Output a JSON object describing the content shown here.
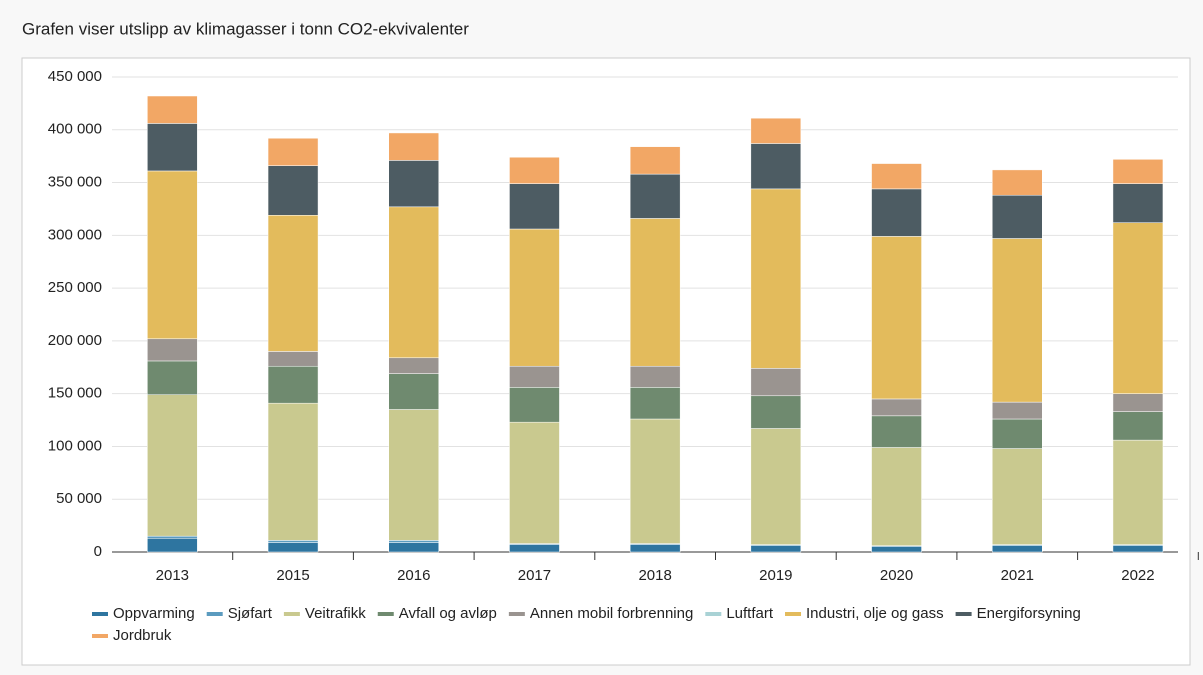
{
  "chart_data": {
    "type": "stacked-bar",
    "title": "Grafen viser utslipp av klimagasser i tonn CO2-ekvivalenter",
    "categories": [
      "2013",
      "2015",
      "2016",
      "2017",
      "2018",
      "2019",
      "2020",
      "2021",
      "2022"
    ],
    "series": [
      {
        "name": "Oppvarming",
        "color": "#2e75a0",
        "values": [
          13000,
          9000,
          9000,
          7000,
          7000,
          6000,
          5000,
          6000,
          6000
        ]
      },
      {
        "name": "Sjøfart",
        "color": "#5b9bbf",
        "values": [
          2000,
          2000,
          2000,
          1000,
          1000,
          1000,
          1000,
          1000,
          1000
        ]
      },
      {
        "name": "Veitrafikk",
        "color": "#c9c98f",
        "values": [
          134000,
          130000,
          124000,
          115000,
          118000,
          110000,
          93000,
          91000,
          99000
        ]
      },
      {
        "name": "Avfall og avløp",
        "color": "#6f8a6f",
        "values": [
          32000,
          35000,
          34000,
          33000,
          30000,
          31000,
          30000,
          28000,
          27000
        ]
      },
      {
        "name": "Annen mobil forbrenning",
        "color": "#9a9490",
        "values": [
          21000,
          14000,
          15000,
          20000,
          20000,
          26000,
          16000,
          16000,
          17000
        ]
      },
      {
        "name": "Luftfart",
        "color": "#a9d2d5",
        "values": [
          0,
          0,
          0,
          0,
          0,
          0,
          0,
          0,
          0
        ]
      },
      {
        "name": "Industri, olje og gass",
        "color": "#e3bb5c",
        "values": [
          159000,
          129000,
          143000,
          130000,
          140000,
          170000,
          154000,
          155000,
          162000
        ]
      },
      {
        "name": "Energiforsyning",
        "color": "#4d5c63",
        "values": [
          45000,
          47000,
          44000,
          43000,
          42000,
          43000,
          45000,
          41000,
          37000
        ]
      },
      {
        "name": "Jordbruk",
        "color": "#f2a765",
        "values": [
          26000,
          26000,
          26000,
          25000,
          26000,
          24000,
          24000,
          24000,
          23000
        ]
      }
    ],
    "ylim": [
      0,
      450000
    ],
    "yticks": [
      0,
      {
        "value": 50000,
        "label": "50 000"
      },
      {
        "value": 100000,
        "label": "100 000"
      },
      {
        "value": 150000,
        "label": "150 000"
      },
      {
        "value": 200000,
        "label": "200 000"
      },
      {
        "value": 250000,
        "label": "250 000"
      },
      {
        "value": 300000,
        "label": "300 000"
      },
      {
        "value": 350000,
        "label": "350 000"
      },
      {
        "value": 400000,
        "label": "400 000"
      },
      {
        "value": 450000,
        "label": "450 000"
      }
    ],
    "grid": true
  }
}
